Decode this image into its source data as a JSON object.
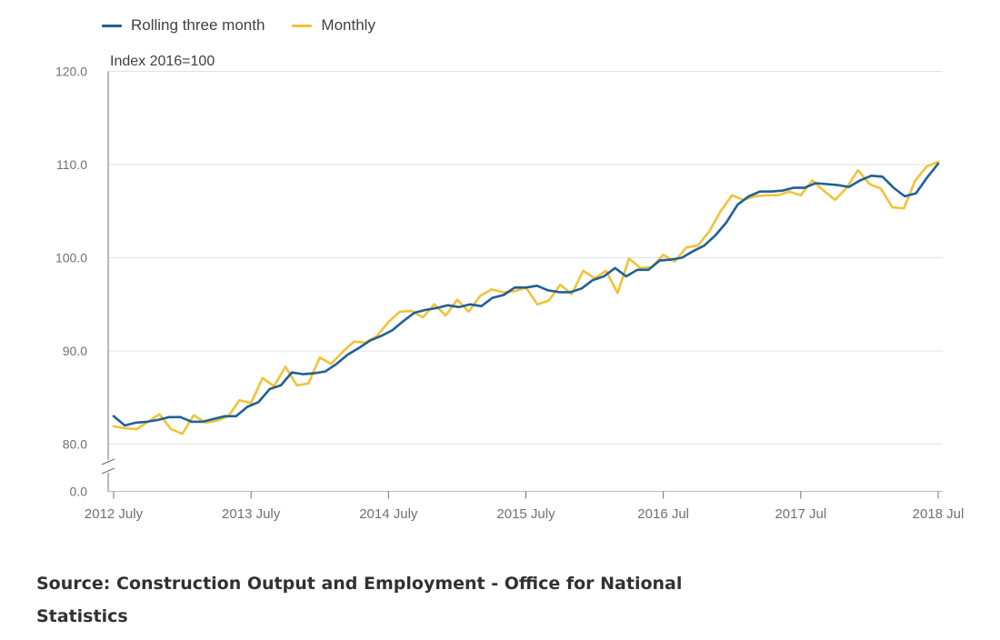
{
  "chart_data": {
    "type": "line",
    "ylabel": "Index 2016=100",
    "legend_position": "top-left",
    "grid": true,
    "y_ticks": [
      "0.0",
      "80.0",
      "90.0",
      "100.0",
      "110.0",
      "120.0"
    ],
    "ylim": [
      78,
      120
    ],
    "axis_break": true,
    "x_ticks": [
      "2012 July",
      "2013 July",
      "2014 July",
      "2015 July",
      "2016 Jul",
      "2017 Jul",
      "2018 Jul"
    ],
    "series": [
      {
        "name": "Rolling three month",
        "color": "#206095",
        "values": [
          83.0,
          82.0,
          82.3,
          82.4,
          82.6,
          82.9,
          82.9,
          82.4,
          82.4,
          82.7,
          83.0,
          83.0,
          84.0,
          84.5,
          85.9,
          86.3,
          87.7,
          87.5,
          87.6,
          87.8,
          88.6,
          89.6,
          90.3,
          91.1,
          91.6,
          92.2,
          93.2,
          94.1,
          94.4,
          94.6,
          94.9,
          94.7,
          95.0,
          94.8,
          95.7,
          96.0,
          96.8,
          96.8,
          97.0,
          96.5,
          96.3,
          96.3,
          96.7,
          97.6,
          98.0,
          98.9,
          98.0,
          98.7,
          98.7,
          99.7,
          99.8,
          100.0,
          100.7,
          101.3,
          102.4,
          103.8,
          105.7,
          106.6,
          107.1,
          107.1,
          107.2,
          107.5,
          107.5,
          108.0,
          107.9,
          107.8,
          107.6,
          108.3,
          108.8,
          108.7,
          107.5,
          106.6,
          106.9,
          108.6,
          110.1
        ]
      },
      {
        "name": "Monthly",
        "color": "#f0c338",
        "values": [
          81.9,
          81.7,
          81.6,
          82.4,
          83.2,
          81.6,
          81.1,
          83.1,
          82.3,
          82.5,
          83.0,
          84.7,
          84.4,
          87.1,
          86.2,
          88.3,
          86.3,
          86.5,
          89.3,
          88.6,
          89.9,
          91.0,
          90.9,
          91.6,
          93.1,
          94.2,
          94.3,
          93.6,
          95.0,
          93.8,
          95.5,
          94.2,
          95.9,
          96.6,
          96.3,
          96.4,
          96.8,
          95.0,
          95.4,
          97.1,
          96.1,
          98.6,
          97.8,
          98.6,
          96.2,
          99.9,
          98.9,
          99.0,
          100.3,
          99.6,
          101.1,
          101.3,
          102.8,
          105.0,
          106.7,
          106.2,
          106.6,
          106.7,
          106.7,
          107.1,
          106.7,
          108.3,
          107.2,
          106.2,
          107.5,
          109.4,
          107.9,
          107.4,
          105.4,
          105.3,
          108.3,
          109.8,
          110.3
        ]
      }
    ]
  },
  "source": "Source: Construction Output and Employment - Office for National Statistics"
}
